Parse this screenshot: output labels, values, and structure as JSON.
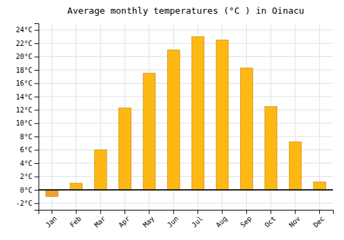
{
  "chart_data": {
    "type": "bar",
    "title": "Average monthly temperatures (°C ) in Oinacu",
    "categories": [
      "Jan",
      "Feb",
      "Mar",
      "Apr",
      "May",
      "Jun",
      "Jul",
      "Aug",
      "Sep",
      "Oct",
      "Nov",
      "Dec"
    ],
    "values": [
      -1.0,
      1.0,
      6.0,
      12.3,
      17.5,
      21.0,
      23.0,
      22.5,
      18.3,
      12.5,
      7.2,
      1.2
    ],
    "colors": [
      "#F0A030",
      "#FDB813",
      "#FDB813",
      "#FDB813",
      "#FDB813",
      "#FDB813",
      "#FDB813",
      "#FDB813",
      "#FDB813",
      "#FDB813",
      "#FDB813",
      "#FDB813"
    ],
    "ylim": [
      -3,
      25
    ],
    "yticks": [
      {
        "value": -2,
        "label": "-2°C"
      },
      {
        "value": 0,
        "label": "0°C"
      },
      {
        "value": 2,
        "label": "2°C"
      },
      {
        "value": 4,
        "label": "4°C"
      },
      {
        "value": 6,
        "label": "6°C"
      },
      {
        "value": 8,
        "label": "8°C"
      },
      {
        "value": 10,
        "label": "10°C"
      },
      {
        "value": 12,
        "label": "12°C"
      },
      {
        "value": 14,
        "label": "14°C"
      },
      {
        "value": 16,
        "label": "16°C"
      },
      {
        "value": 18,
        "label": "18°C"
      },
      {
        "value": 20,
        "label": "20°C"
      },
      {
        "value": 22,
        "label": "22°C"
      },
      {
        "value": 24,
        "label": "24°C"
      }
    ],
    "grid": true
  }
}
